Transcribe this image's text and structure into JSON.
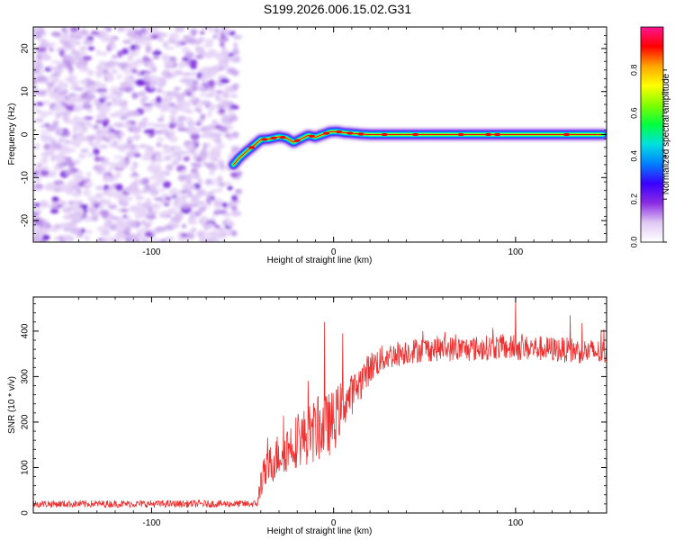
{
  "title": "S199.2026.006.15.02.G31",
  "chart_data": [
    {
      "type": "heatmap",
      "xlabel": "Height of straight line (km)",
      "ylabel": "Frequency (Hz)",
      "xlim": [
        -165,
        150
      ],
      "ylim": [
        -25,
        25
      ],
      "xticks": [
        -100,
        0,
        100
      ],
      "xtick_labels": [
        "-100",
        "0",
        "100"
      ],
      "yticks": [
        -20,
        -10,
        0,
        10,
        20
      ],
      "ytick_labels": [
        "-20",
        "-10",
        "0",
        "10",
        "20"
      ],
      "noise_region_x": [
        -165,
        -52
      ],
      "ridge_x": [
        -55,
        -52,
        -48,
        -45,
        -40,
        -35,
        -30,
        -26,
        -22,
        -18,
        -14,
        -10,
        -6,
        -2,
        2,
        6,
        10,
        15,
        20,
        30,
        40,
        60,
        80,
        100,
        120,
        148
      ],
      "ridge_hz": [
        -7,
        -5.5,
        -4,
        -3,
        -1.2,
        -1.0,
        -0.5,
        -0.8,
        -1.8,
        -1.0,
        -0.2,
        -0.6,
        0.0,
        0.6,
        0.7,
        0.4,
        0.3,
        0.1,
        0.0,
        0.0,
        0.0,
        0.0,
        0.0,
        0.0,
        0.0,
        0.0
      ],
      "colorbar": {
        "label": "Normalized spectral amplitude",
        "range": [
          0,
          1
        ],
        "ticks": [
          0.0,
          0.2,
          0.4,
          0.6,
          0.8
        ],
        "tick_labels": [
          "0.0",
          "0.2",
          "0.4",
          "0.6",
          "0.8"
        ],
        "colors": [
          "#ffffff",
          "#e0c8f5",
          "#8a2be2",
          "#3a00ff",
          "#0080ff",
          "#00e0e0",
          "#00ff40",
          "#80ff00",
          "#ffff00",
          "#ffa500",
          "#ff0000",
          "#ff1493"
        ]
      }
    },
    {
      "type": "line",
      "xlabel": "Height of straight line (km)",
      "ylabel": "SNR (10 * v/v)",
      "xlim": [
        -165,
        150
      ],
      "ylim": [
        0,
        475
      ],
      "xticks": [
        -100,
        0,
        100
      ],
      "xtick_labels": [
        "-100",
        "0",
        "100"
      ],
      "yticks": [
        0,
        100,
        200,
        300,
        400
      ],
      "ytick_labels": [
        "0",
        "100",
        "200",
        "300",
        "400"
      ],
      "color": "#ee3030",
      "series": [
        {
          "name": "SNR",
          "x": [
            -165,
            -140,
            -100,
            -60,
            -42,
            -40,
            -35,
            -30,
            -25,
            -20,
            -15,
            -10,
            -5,
            0,
            5,
            10,
            15,
            20,
            25,
            30,
            40,
            50,
            60,
            70,
            80,
            90,
            100,
            110,
            120,
            130,
            140,
            150
          ],
          "y": [
            20,
            20,
            20,
            20,
            20,
            70,
            105,
            130,
            145,
            160,
            170,
            180,
            190,
            200,
            240,
            260,
            290,
            320,
            335,
            345,
            355,
            360,
            362,
            360,
            362,
            365,
            362,
            363,
            360,
            358,
            355,
            352
          ],
          "noise_amplitude": [
            8,
            8,
            8,
            8,
            8,
            35,
            45,
            50,
            55,
            60,
            65,
            70,
            70,
            70,
            55,
            45,
            40,
            35,
            32,
            30,
            28,
            28,
            28,
            28,
            28,
            28,
            28,
            28,
            28,
            28,
            28,
            28
          ],
          "peaks": [
            {
              "x": -5,
              "y": 420
            },
            {
              "x": 5,
              "y": 395
            },
            {
              "x": 100,
              "y": 475
            },
            {
              "x": 130,
              "y": 435
            }
          ]
        }
      ]
    }
  ]
}
